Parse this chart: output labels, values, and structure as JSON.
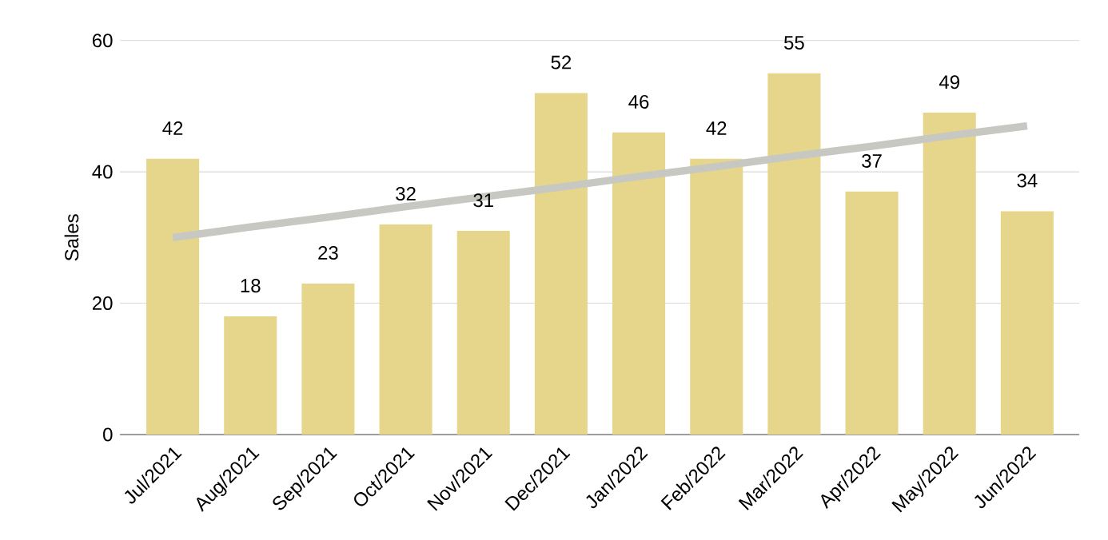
{
  "chart_data": {
    "type": "bar",
    "ylabel": "Sales",
    "categories": [
      "Jul/2021",
      "Aug/2021",
      "Sep/2021",
      "Oct/2021",
      "Nov/2021",
      "Dec/2021",
      "Jan/2022",
      "Feb/2022",
      "Mar/2022",
      "Apr/2022",
      "May/2022",
      "Jun/2022"
    ],
    "series": [
      {
        "color": "#e6d68c",
        "values": [
          42,
          18,
          23,
          32,
          31,
          52,
          46,
          42,
          55,
          37,
          49,
          34
        ],
        "value_labels": [
          "42",
          "18",
          "23",
          "32",
          "31",
          "52",
          "46",
          "42",
          "55",
          "37",
          "49",
          "34"
        ]
      },
      {
        "type": "line",
        "color": "#c8c8c2",
        "values": [
          30,
          31.6,
          33.1,
          34.7,
          36.2,
          37.7,
          39.3,
          40.8,
          42.4,
          43.9,
          45.5,
          47
        ]
      }
    ],
    "ylim": [
      0,
      60
    ],
    "yticks": [
      0,
      20,
      40,
      60
    ],
    "grid": "y"
  }
}
